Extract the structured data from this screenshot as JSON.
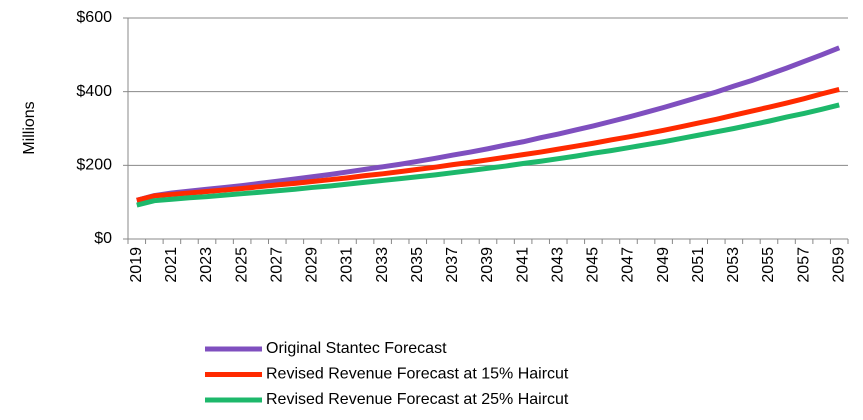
{
  "chart_data": {
    "type": "line",
    "ylabel": "Millions",
    "categories": [
      "2019",
      null,
      "2021",
      null,
      "2023",
      null,
      "2025",
      null,
      "2027",
      null,
      "2029",
      null,
      "2031",
      null,
      "2033",
      null,
      "2035",
      null,
      "2037",
      null,
      "2039",
      null,
      "2041",
      null,
      "2043",
      null,
      "2045",
      null,
      "2047",
      null,
      "2049",
      null,
      "2051",
      null,
      "2053",
      null,
      "2055",
      null,
      "2057",
      null,
      "2059"
    ],
    "series": [
      {
        "name": "Original Stantec Forecast",
        "color": "#7f4fbf",
        "values": [
          105,
          118,
          125,
          130,
          135,
          140,
          145,
          151,
          157,
          163,
          169,
          175,
          182,
          189,
          196,
          203,
          211,
          219,
          228,
          236,
          245,
          255,
          264,
          275,
          285,
          296,
          307,
          319,
          331,
          344,
          357,
          371,
          385,
          399,
          415,
          430,
          447,
          464,
          482,
          500,
          519
        ]
      },
      {
        "name": "Revised Revenue Forecast at 15% Haircut",
        "color": "#ff2a00",
        "values": [
          105,
          117,
          121,
          125,
          129,
          133,
          137,
          142,
          147,
          151,
          156,
          161,
          166,
          172,
          177,
          183,
          189,
          195,
          202,
          208,
          215,
          222,
          229,
          236,
          244,
          252,
          260,
          269,
          277,
          286,
          295,
          305,
          315,
          325,
          336,
          347,
          358,
          369,
          381,
          394,
          406
        ]
      },
      {
        "name": "Revised Revenue Forecast at 25% Haircut",
        "color": "#1db86b",
        "values": [
          92,
          104,
          108,
          112,
          115,
          119,
          123,
          127,
          131,
          135,
          140,
          144,
          149,
          154,
          159,
          164,
          169,
          174,
          180,
          186,
          192,
          198,
          205,
          211,
          218,
          225,
          233,
          240,
          248,
          256,
          264,
          273,
          282,
          291,
          300,
          310,
          320,
          331,
          341,
          352,
          364
        ]
      }
    ],
    "ylim": [
      0,
      600
    ],
    "yticks": [
      {
        "value": 0,
        "label": "$0"
      },
      {
        "value": 200,
        "label": "$200"
      },
      {
        "value": 400,
        "label": "$400"
      },
      {
        "value": 600,
        "label": "$600"
      }
    ],
    "grid": true
  }
}
